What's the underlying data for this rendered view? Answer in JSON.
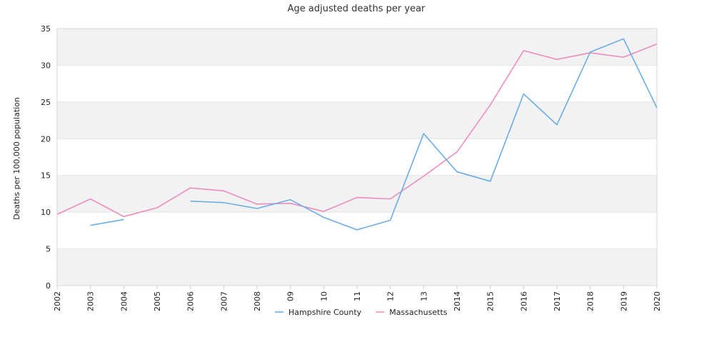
{
  "chart_data": {
    "type": "line",
    "title": "Age adjusted deaths per year",
    "xlabel": "",
    "ylabel": "Deaths per 100,000 population",
    "categories": [
      "2002",
      "2003",
      "2004",
      "2005",
      "2006",
      "2007",
      "2008",
      "09",
      "10",
      "11",
      "12",
      "13",
      "2014",
      "2015",
      "2016",
      "2017",
      "2018",
      "2019",
      "2020"
    ],
    "ylim": [
      0,
      35
    ],
    "yticks": [
      "0",
      "5",
      "10",
      "15",
      "20",
      "25",
      "30",
      "35"
    ],
    "grid": "alternating horizontal bands",
    "legend_position": "bottom-center",
    "series": [
      {
        "name": "Hampshire County",
        "color": "#6aaee8",
        "values": [
          null,
          8.2,
          9.0,
          null,
          11.5,
          11.3,
          10.5,
          11.7,
          9.3,
          7.6,
          8.9,
          20.7,
          15.5,
          14.2,
          26.1,
          21.9,
          31.8,
          33.6,
          24.2
        ]
      },
      {
        "name": "Massachusetts",
        "color": "#ec8cbf",
        "values": [
          9.7,
          11.8,
          9.4,
          10.6,
          13.3,
          12.9,
          11.1,
          11.2,
          10.1,
          12.0,
          11.8,
          14.9,
          18.2,
          24.6,
          32.0,
          30.8,
          31.7,
          31.1,
          32.9
        ]
      }
    ]
  }
}
